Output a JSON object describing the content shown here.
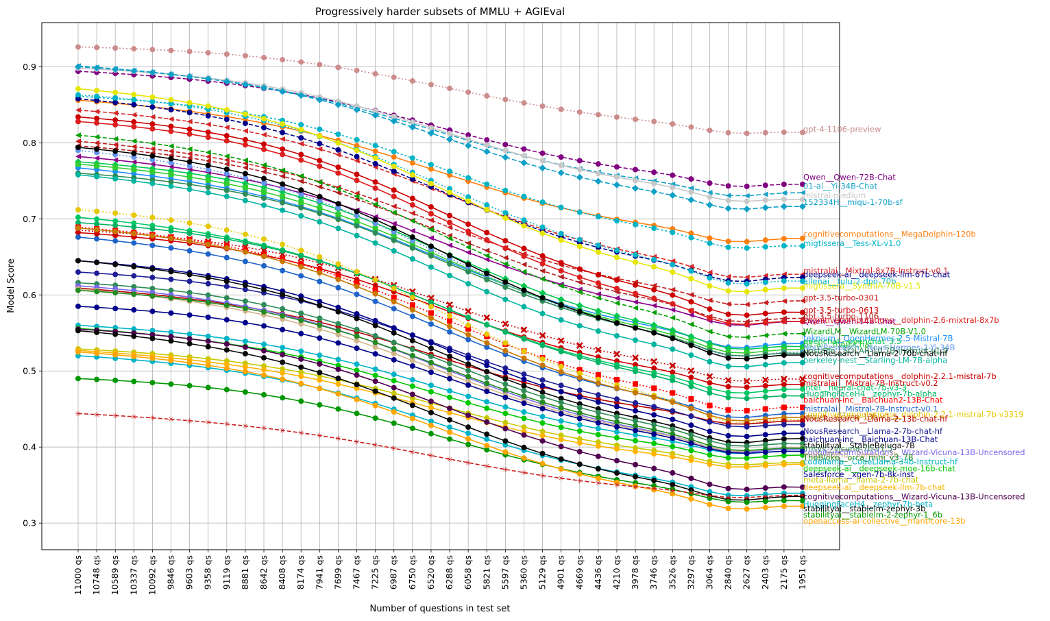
{
  "chart_data": {
    "type": "line",
    "title": "Progressively harder subsets of MMLU + AGIEval",
    "xlabel": "Number of questions in test set",
    "ylabel": "Model Score",
    "ylim": [
      0.265,
      0.958
    ],
    "yticks": [
      "0.3",
      "0.4",
      "0.5",
      "0.6",
      "0.7",
      "0.8",
      "0.9"
    ],
    "grid": true,
    "categories": [
      "11000 qs",
      "10748 qs",
      "10589 qs",
      "10337 qs",
      "10092 qs",
      "9846 qs",
      "9603 qs",
      "9358 qs",
      "9119 qs",
      "8881 qs",
      "8642 qs",
      "8408 qs",
      "8174 qs",
      "7941 qs",
      "7699 qs",
      "7467 qs",
      "7225 qs",
      "6987 qs",
      "6750 qs",
      "6520 qs",
      "6288 qs",
      "6058 qs",
      "5821 qs",
      "5597 qs",
      "5360 qs",
      "5129 qs",
      "4901 qs",
      "4669 qs",
      "4436 qs",
      "4210 qs",
      "3978 qs",
      "3746 qs",
      "3526 qs",
      "3297 qs",
      "3064 qs",
      "2840 qs",
      "2627 qs",
      "2403 qs",
      "2175 qs",
      "1951 qs"
    ],
    "series": [
      {
        "name": "gpt-4-1106-preview",
        "color": "#cd8c8c",
        "dash": "2,3",
        "marker": "circle",
        "start": 0.926,
        "end": 0.814,
        "end_label_y": 0.818
      },
      {
        "name": "Qwen__Qwen-72B-Chat",
        "color": "#800080",
        "dash": "6,3",
        "marker": "circle",
        "start": 0.894,
        "end": 0.746,
        "end_label_y": 0.755
      },
      {
        "name": "01-ai__Yi-34B-Chat",
        "color": "#17a2c8",
        "dash": "7,3",
        "marker": "triangle",
        "start": 0.901,
        "end": 0.735,
        "end_label_y": 0.743
      },
      {
        "name": "mistral-medium",
        "color": "#c8c8c8",
        "dash": "",
        "marker": "circle",
        "start": 0.898,
        "end": 0.726,
        "end_label_y": 0.731
      },
      {
        "name": "152334H__miqu-1-70b-sf",
        "color": "#0fa0c8",
        "dash": "7,3",
        "marker": "diamond",
        "start": 0.9,
        "end": 0.717,
        "end_label_y": 0.722
      },
      {
        "name": "cognitivecomputations__MegaDolphin-120b",
        "color": "#ff7f0e",
        "dash": "",
        "marker": "circle",
        "start": 0.856,
        "end": 0.675,
        "end_label_y": 0.68
      },
      {
        "name": "migtissera__Tess-XL-v1.0",
        "color": "#00b4c8",
        "dash": "3,3",
        "marker": "circle",
        "start": 0.861,
        "end": 0.665,
        "end_label_y": 0.668
      },
      {
        "name": "mistralai__Mixtral-8x7B-Instruct-v0.1",
        "color": "#d62728",
        "dash": "6,3",
        "marker": "triangle",
        "start": 0.843,
        "end": 0.628,
        "end_label_y": 0.632
      },
      {
        "name": "deepseek-ai__deepseek-llm-67b-chat",
        "color": "#00008b",
        "dash": "6,3",
        "marker": "circle",
        "start": 0.858,
        "end": 0.624,
        "end_label_y": 0.627
      },
      {
        "name": "allenai__tulu-2-dpo-70b",
        "color": "#00b4c8",
        "dash": "2,3",
        "marker": "circle",
        "start": 0.863,
        "end": 0.619,
        "end_label_y": 0.618
      },
      {
        "name": "migtissera__SynthIA-70B-v1.5",
        "color": "#e6e600",
        "dash": "",
        "marker": "circle",
        "start": 0.871,
        "end": 0.61,
        "end_label_y": 0.612
      },
      {
        "name": "gpt-3.5-turbo-0301",
        "color": "#c81e1e",
        "dash": "6,3",
        "marker": "triangle",
        "start": 0.802,
        "end": 0.593,
        "end_label_y": 0.596
      },
      {
        "name": "gpt-3.5-turbo-0613",
        "color": "#cc0000",
        "dash": "",
        "marker": "circle",
        "start": 0.834,
        "end": 0.578,
        "end_label_y": 0.58
      },
      {
        "name": "gpt-3.5-turbo-1106",
        "color": "#b41e1e",
        "dash": "6,3",
        "marker": "triangle",
        "start": 0.796,
        "end": 0.57,
        "end_label_y": 0.572
      },
      {
        "name": "Qwen__Qwen-14B-Chat",
        "color": "#8b008b",
        "dash": "",
        "marker": "triangle",
        "start": 0.782,
        "end": 0.566,
        "end_label_y": 0.565
      },
      {
        "name": "cognitivecomputations__dolphin-2.6-mixtral-8x7b",
        "color": "#dc1e1e",
        "dash": "",
        "marker": "circle",
        "start": 0.828,
        "end": 0.566,
        "end_label_y": 0.567
      },
      {
        "name": "WizardLM__WizardLM-70B-V1.0",
        "color": "#00a000",
        "dash": "6,3",
        "marker": "triangle",
        "start": 0.81,
        "end": 0.55,
        "end_label_y": 0.552
      },
      {
        "name": "teknium__OpenHermes-2.5-Mistral-7B",
        "color": "#1e90ff",
        "dash": "",
        "marker": "circle",
        "start": 0.767,
        "end": 0.537,
        "end_label_y": 0.543
      },
      {
        "name": "openchat__openchat_3.5",
        "color": "#00c850",
        "dash": "",
        "marker": "diamond",
        "start": 0.775,
        "end": 0.533,
        "end_label_y": 0.539
      },
      {
        "name": "01-ai__Yi-6B-Chat",
        "color": "#32cd32",
        "dash": "",
        "marker": "square",
        "start": 0.772,
        "end": 0.529,
        "end_label_y": 0.535
      },
      {
        "name": "NousResearch__Nous-Hermes-2-Yi-34B",
        "color": "#6495ed",
        "dash": "2,3",
        "marker": "circle",
        "start": 0.79,
        "end": 0.526,
        "end_label_y": 0.531
      },
      {
        "name": "upstage__SOLAR-10.7B-Instruct-v1.0",
        "color": "#2e8b57",
        "dash": "",
        "marker": "circle",
        "start": 0.76,
        "end": 0.524,
        "end_label_y": 0.527
      },
      {
        "name": "NousResearch__Llama-2-70b-chat-hf",
        "color": "#000000",
        "dash": "",
        "marker": "circle",
        "start": 0.794,
        "end": 0.522,
        "end_label_y": 0.523
      },
      {
        "name": "berkeley-nest__Starling-LM-7B-alpha",
        "color": "#00b4a0",
        "dash": "",
        "marker": "circle",
        "start": 0.758,
        "end": 0.512,
        "end_label_y": 0.514
      },
      {
        "name": "cognitivecomputations__dolphin-2.2.1-mistral-7b",
        "color": "#c80000",
        "dash": "2,3",
        "marker": "x",
        "start": 0.685,
        "end": 0.49,
        "end_label_y": 0.493
      },
      {
        "name": "mistralai__Mistral-7B-Instruct-v0.2",
        "color": "#cc0000",
        "dash": "",
        "marker": "circle",
        "start": 0.682,
        "end": 0.483,
        "end_label_y": 0.484
      },
      {
        "name": "Intel__neural-chat-7b-v3-3",
        "color": "#00c864",
        "dash": "",
        "marker": "circle",
        "start": 0.702,
        "end": 0.477,
        "end_label_y": 0.478
      },
      {
        "name": "HuggingFaceH4__zephyr-7b-alpha",
        "color": "#00b464",
        "dash": "",
        "marker": "circle",
        "start": 0.695,
        "end": 0.468,
        "end_label_y": 0.47
      },
      {
        "name": "baichuan-inc__Baichuan2-13B-Chat",
        "color": "#ff0000",
        "dash": "2,3",
        "marker": "square",
        "start": 0.689,
        "end": 0.453,
        "end_label_y": 0.462
      },
      {
        "name": "mistralai__Mistral-7B-Instruct-v0.1",
        "color": "#1e64c8",
        "dash": "",
        "marker": "circle",
        "start": 0.676,
        "end": 0.445,
        "end_label_y": 0.45
      },
      {
        "name": "cognitivecomputations__dolphin-2.2.1-mistral-7b-v3319",
        "color": "#e6c800",
        "dash": "2,3",
        "marker": "circle",
        "start": 0.712,
        "end": 0.437,
        "end_label_y": 0.443
      },
      {
        "name": "lmsys__vicuna-13b-v1.5",
        "color": "#c87800",
        "dash": "",
        "marker": "circle",
        "start": 0.688,
        "end": 0.44,
        "end_label_y": 0.44
      },
      {
        "name": "NousResearch__Llama-2-13b-chat-hf",
        "color": "#b40000",
        "dash": "",
        "marker": "circle",
        "start": 0.609,
        "end": 0.435,
        "end_label_y": 0.437
      },
      {
        "name": "NousResearch__Llama-2-7b-chat-hf",
        "color": "#1e1e96",
        "dash": "",
        "marker": "circle",
        "start": 0.63,
        "end": 0.43,
        "end_label_y": 0.421
      },
      {
        "name": "baichuan-inc__Baichuan-13B-Chat",
        "color": "#00008b",
        "dash": "",
        "marker": "circle",
        "start": 0.645,
        "end": 0.419,
        "end_label_y": 0.41
      },
      {
        "name": "stabilityai__StableBeluga-7B",
        "color": "#0a0a0a",
        "dash": "",
        "marker": "circle",
        "start": 0.645,
        "end": 0.412,
        "end_label_y": 0.402
      },
      {
        "name": "lmsys__vicuna-7b-v1.5",
        "color": "#2e8b57",
        "dash": "",
        "marker": "circle",
        "start": 0.616,
        "end": 0.405,
        "end_label_y": 0.398
      },
      {
        "name": "cognitivecomputations__Wizard-Vicuna-13B-Uncensored",
        "color": "#7b68ee",
        "dash": "",
        "marker": "circle",
        "start": 0.612,
        "end": 0.398,
        "end_label_y": 0.393
      },
      {
        "name": "meta-llama__llama-2-7b",
        "color": "#d2b48c",
        "dash": "",
        "marker": "circle",
        "start": 0.608,
        "end": 0.4,
        "end_label_y": 0.39
      },
      {
        "name": "TheBloke__orca_mini_v3_7B",
        "color": "#228b22",
        "dash": "",
        "marker": "circle",
        "start": 0.606,
        "end": 0.399,
        "end_label_y": 0.386
      },
      {
        "name": "codellama__CodeLlama-34b-Instruct-hf",
        "color": "#00b4c8",
        "dash": "",
        "marker": "circle",
        "start": 0.56,
        "end": 0.395,
        "end_label_y": 0.381
      },
      {
        "name": "deepseek-ai__deepseek-moe-16b-chat",
        "color": "#00c800",
        "dash": "",
        "marker": "circle",
        "start": 0.556,
        "end": 0.39,
        "end_label_y": 0.372
      },
      {
        "name": "Salesforce__xgen-7b-8k-inst",
        "color": "#00008b",
        "dash": "",
        "marker": "circle",
        "start": 0.585,
        "end": 0.395,
        "end_label_y": 0.364
      },
      {
        "name": "meta-llama__llama-2-7b-chat",
        "color": "#c8c800",
        "dash": "",
        "marker": "circle",
        "start": 0.529,
        "end": 0.38,
        "end_label_y": 0.357
      },
      {
        "name": "deepseek-ai__deepseek-llm-7b-chat",
        "color": "#ffb400",
        "dash": "",
        "marker": "circle",
        "start": 0.527,
        "end": 0.378,
        "end_label_y": 0.347
      },
      {
        "name": "cognitivecomputations__Wizard-Vicuna-13B-Uncensored",
        "color": "#500050",
        "dash": "",
        "marker": "circle",
        "start": 0.555,
        "end": 0.348,
        "end_label_y": 0.335
      },
      {
        "name": "HuggingFaceH4__zephyr-7b-beta",
        "color": "#00b4c8",
        "dash": "",
        "marker": "circle",
        "start": 0.52,
        "end": 0.34,
        "end_label_y": 0.325
      },
      {
        "name": "stabilityai__stablelm-zephyr-3b",
        "color": "#0a0a0a",
        "dash": "",
        "marker": "circle",
        "start": 0.553,
        "end": 0.336,
        "end_label_y": 0.319
      },
      {
        "name": "stabilityai__stablelm-2-zephyr-1_6b",
        "color": "#009600",
        "dash": "",
        "marker": "circle",
        "start": 0.49,
        "end": 0.33,
        "end_label_y": 0.311
      },
      {
        "name": "openaccess-ai-collective__manticore-13b",
        "color": "#ffa500",
        "dash": "",
        "marker": "circle",
        "start": 0.525,
        "end": 0.323,
        "end_label_y": 0.303
      },
      {
        "name": "",
        "color": "#c81e1e",
        "dash": "6,3",
        "marker": "star",
        "start": 0.444,
        "end": 0.337,
        "end_label_y": 0
      }
    ]
  }
}
